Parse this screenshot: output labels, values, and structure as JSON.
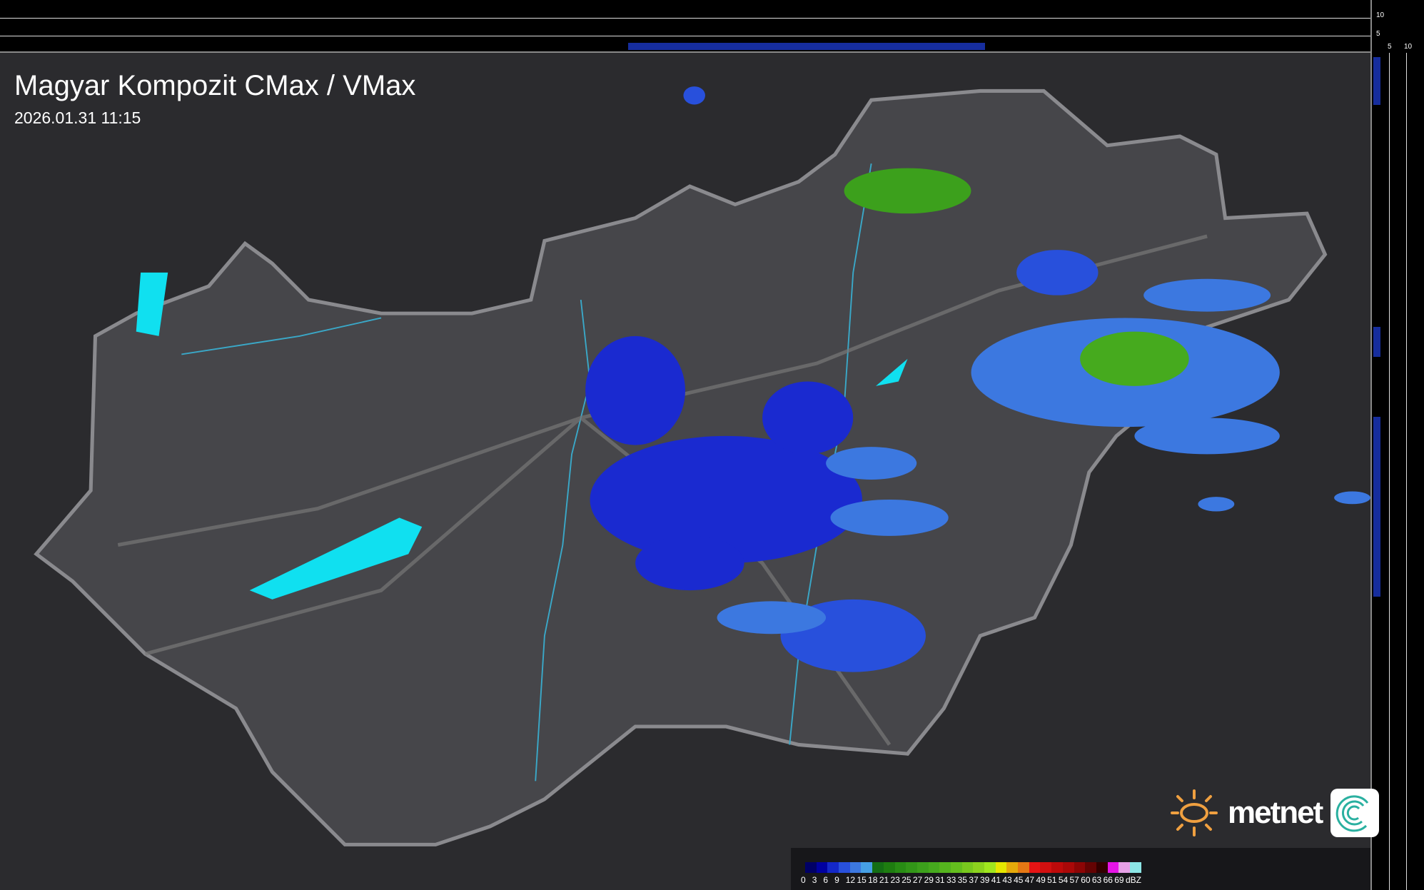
{
  "title": "Magyar Kompozit CMax / VMax",
  "timestamp": "2026.01.31 11:15",
  "profile_ticks": {
    "top": [
      "10",
      "5"
    ],
    "right": [
      "5",
      "10"
    ]
  },
  "legend": {
    "unit": "dBZ",
    "labels": [
      "0",
      "3",
      "6",
      "9",
      "12",
      "15",
      "18",
      "21",
      "23",
      "25",
      "27",
      "29",
      "31",
      "33",
      "35",
      "37",
      "39",
      "41",
      "43",
      "45",
      "47",
      "49",
      "51",
      "54",
      "57",
      "60",
      "63",
      "66",
      "69"
    ],
    "colors": [
      "#000066",
      "#0000a0",
      "#1428c8",
      "#2850dc",
      "#3c78e0",
      "#46a0e6",
      "#146e14",
      "#1e7d10",
      "#288c14",
      "#329618",
      "#3ca01c",
      "#46aa1e",
      "#55b41e",
      "#64be1e",
      "#78c81e",
      "#8cd21e",
      "#a0e61e",
      "#e6e600",
      "#e6aa0a",
      "#e67814",
      "#e61414",
      "#d21010",
      "#be0a0a",
      "#aa0808",
      "#8c0505",
      "#640303",
      "#320000",
      "#e614e6",
      "#e6a0e6",
      "#8ce6e6"
    ]
  },
  "brand": {
    "logo_text": "metnet",
    "accent": "#f0a040"
  },
  "colors": {
    "terrain": "#2b2b2e",
    "country": "#46464a",
    "border": "#8a8a8e",
    "river": "#3aa8c8",
    "lake": "#10e0f0"
  }
}
